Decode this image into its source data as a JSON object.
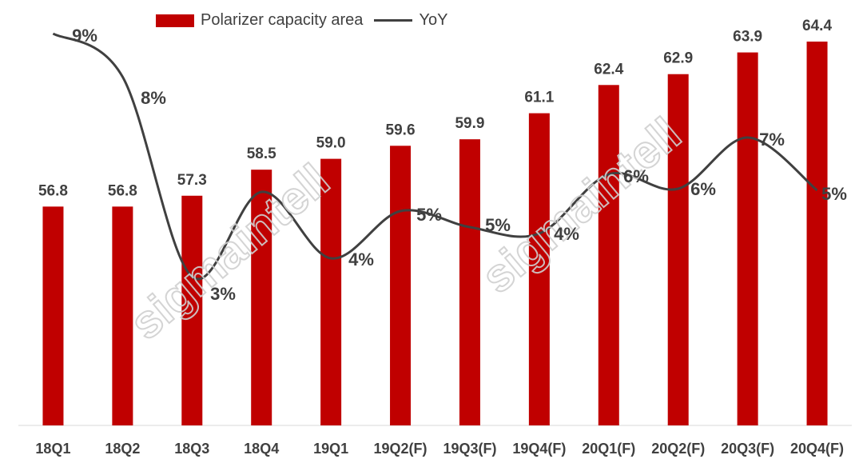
{
  "chart_data": {
    "type": "bar",
    "categories": [
      "18Q1",
      "18Q2",
      "18Q3",
      "18Q4",
      "19Q1",
      "19Q2(F)",
      "19Q3(F)",
      "19Q4(F)",
      "20Q1(F)",
      "20Q2(F)",
      "20Q3(F)",
      "20Q4(F)"
    ],
    "series": [
      {
        "name": "Polarizer capacity area",
        "kind": "bar",
        "values": [
          56.8,
          56.8,
          57.3,
          58.5,
          59.0,
          59.6,
          59.9,
          61.1,
          62.4,
          62.9,
          63.9,
          64.4
        ],
        "labels": [
          "56.8",
          "56.8",
          "57.3",
          "58.5",
          "59.0",
          "59.6",
          "59.9",
          "61.1",
          "62.4",
          "62.9",
          "63.9",
          "64.4"
        ]
      },
      {
        "name": "YoY",
        "kind": "line",
        "values": [
          9,
          8,
          3,
          5,
          4,
          5,
          5,
          4,
          6,
          6,
          7,
          5
        ],
        "labels": [
          "9%",
          "8%",
          "3%",
          "",
          "4%",
          "5%",
          "5%",
          "4%",
          "6%",
          "6%",
          "7%",
          "5%"
        ]
      }
    ],
    "legend_position": "top",
    "grid": false,
    "colors": {
      "bar": "#c00000",
      "line": "#404040",
      "text": "#404040"
    },
    "watermark": "sigmaintell"
  }
}
